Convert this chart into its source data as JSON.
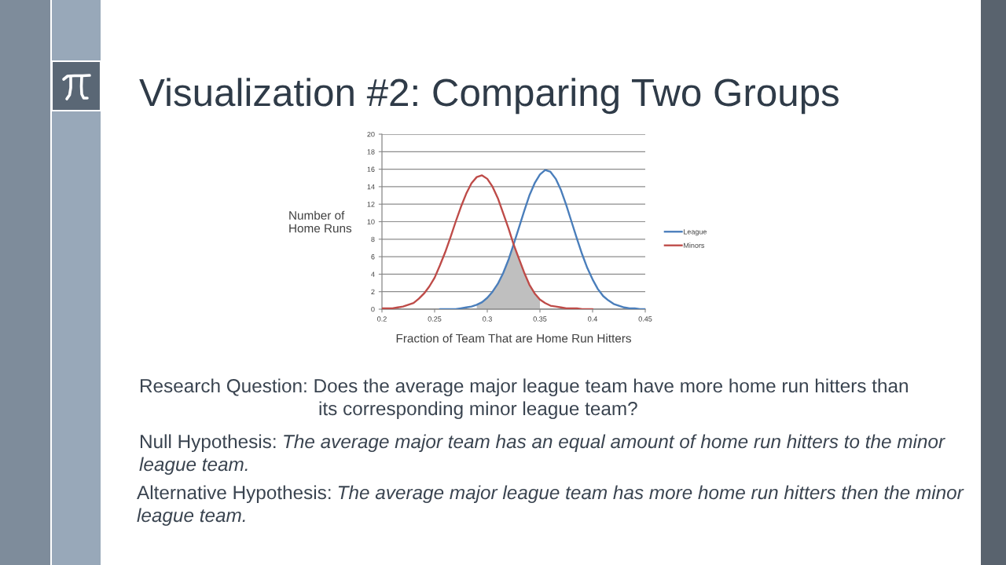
{
  "chart_data": {
    "type": "line",
    "title": "Visualization #2: Comparing Two Groups",
    "xlabel": "Fraction of Team That are Home Run Hitters",
    "ylabel": "Number of\nHome Runs",
    "series": [
      {
        "name": "League",
        "color": "#4a7ebb",
        "x": [
          0.255,
          0.26,
          0.265,
          0.27,
          0.275,
          0.28,
          0.285,
          0.29,
          0.295,
          0.3,
          0.305,
          0.31,
          0.315,
          0.32,
          0.325,
          0.33,
          0.335,
          0.34,
          0.345,
          0.35,
          0.355,
          0.36,
          0.365,
          0.37,
          0.375,
          0.38,
          0.385,
          0.39,
          0.395,
          0.4,
          0.405,
          0.41,
          0.415,
          0.42,
          0.425,
          0.43,
          0.435,
          0.44,
          0.445,
          0.45
        ],
        "values": [
          0,
          0,
          0,
          0,
          0.1,
          0.2,
          0.3,
          0.5,
          0.8,
          1.3,
          2.0,
          2.9,
          4.1,
          5.6,
          7.4,
          9.3,
          11.2,
          13.0,
          14.4,
          15.4,
          15.9,
          15.7,
          14.9,
          13.6,
          11.9,
          10.0,
          8.1,
          6.3,
          4.7,
          3.4,
          2.3,
          1.5,
          1.0,
          0.6,
          0.4,
          0.2,
          0.1,
          0.1,
          0,
          0
        ]
      },
      {
        "name": "Minors",
        "color": "#be4b48",
        "x": [
          0.2,
          0.205,
          0.21,
          0.215,
          0.22,
          0.225,
          0.23,
          0.235,
          0.24,
          0.245,
          0.25,
          0.255,
          0.26,
          0.265,
          0.27,
          0.275,
          0.28,
          0.285,
          0.29,
          0.295,
          0.3,
          0.305,
          0.31,
          0.315,
          0.32,
          0.325,
          0.33,
          0.335,
          0.34,
          0.345,
          0.35,
          0.355,
          0.36,
          0.365,
          0.37,
          0.375,
          0.38,
          0.385,
          0.39,
          0.395,
          0.4
        ],
        "values": [
          0.1,
          0.1,
          0.1,
          0.2,
          0.3,
          0.5,
          0.7,
          1.2,
          1.8,
          2.6,
          3.6,
          5.0,
          6.5,
          8.2,
          10.0,
          11.7,
          13.2,
          14.4,
          15.1,
          15.3,
          14.9,
          14.0,
          12.7,
          11.0,
          9.3,
          7.4,
          5.8,
          4.2,
          2.8,
          1.8,
          1.1,
          0.7,
          0.4,
          0.3,
          0.2,
          0.1,
          0.1,
          0.1,
          0,
          0,
          0
        ]
      },
      {
        "type": "area",
        "color": "#bfbfbf",
        "x": [
          0.29,
          0.295,
          0.3,
          0.305,
          0.31,
          0.315,
          0.32,
          0.325,
          0.33,
          0.335,
          0.34,
          0.345,
          0.35
        ],
        "values": [
          0.5,
          0.8,
          1.3,
          2.0,
          2.9,
          4.1,
          5.6,
          7.4,
          5.8,
          4.2,
          2.8,
          1.8,
          1.1
        ]
      }
    ],
    "xlim": [
      0.2,
      0.45
    ],
    "ylim": [
      0,
      20
    ],
    "xticks": [
      0.2,
      0.25,
      0.3,
      0.35,
      0.4,
      0.45
    ],
    "yticks": [
      0,
      2,
      4,
      6,
      8,
      10,
      12,
      14,
      16,
      18,
      20
    ],
    "grid": "y",
    "legend": "right",
    "annotations": [
      "Research Question: Does the average major league team have more home run hitters than\nits corresponding minor league team?",
      "Null Hypothesis: The average major team has an equal amount of home run hitters to the minor\nleague team.",
      "Alternative Hypothesis: The average major league team has more home run hitters then the minor\nleague team."
    ]
  }
}
